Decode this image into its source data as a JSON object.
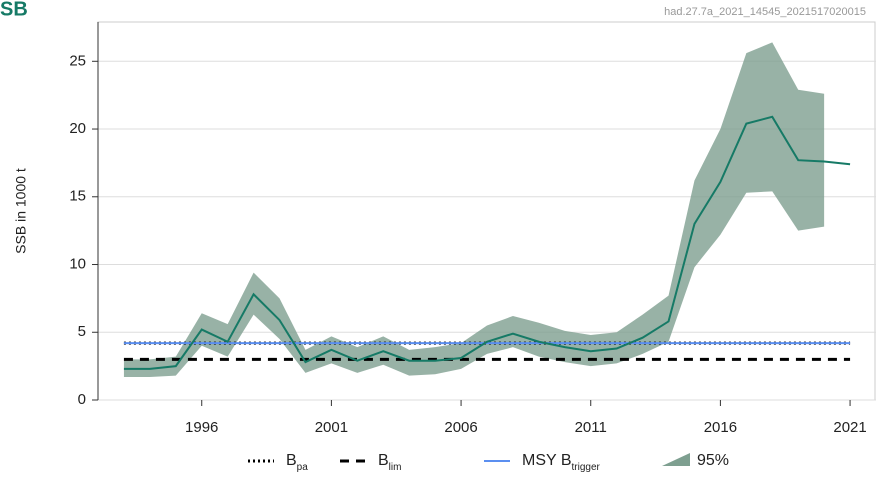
{
  "chart_data": {
    "type": "line",
    "title": "SB",
    "subtitle": "had.27.7a_2021_14545_2021517020015",
    "y_label": "SSB in 1000 t",
    "x": [
      1993,
      1994,
      1995,
      1996,
      1997,
      1998,
      1999,
      2000,
      2001,
      2002,
      2003,
      2004,
      2005,
      2006,
      2007,
      2008,
      2009,
      2010,
      2011,
      2012,
      2013,
      2014,
      2015,
      2016,
      2017,
      2018,
      2019,
      2020,
      2021
    ],
    "series": [
      {
        "color": "#167a66",
        "values": [
          2.3,
          2.3,
          2.5,
          5.2,
          4.3,
          7.8,
          5.9,
          2.8,
          3.7,
          2.9,
          3.6,
          2.9,
          2.9,
          3.1,
          4.3,
          4.9,
          4.3,
          3.9,
          3.6,
          3.8,
          4.6,
          5.8,
          13.0,
          16.1,
          20.4,
          20.9,
          17.7,
          17.6,
          17.4
        ]
      }
    ],
    "band": {
      "label": "95%",
      "color": "#7e9f90",
      "low": [
        1.7,
        1.7,
        1.8,
        4.0,
        3.2,
        6.3,
        4.5,
        2.0,
        2.7,
        2.0,
        2.6,
        1.8,
        1.9,
        2.3,
        3.4,
        3.9,
        3.2,
        2.8,
        2.5,
        2.7,
        3.4,
        4.3,
        9.8,
        12.2,
        15.3,
        15.4,
        12.5,
        12.8,
        null
      ],
      "high": [
        3.0,
        3.0,
        3.2,
        6.4,
        5.6,
        9.4,
        7.5,
        3.7,
        4.7,
        3.9,
        4.7,
        3.7,
        3.9,
        4.2,
        5.5,
        6.2,
        5.7,
        5.1,
        4.8,
        5.0,
        6.3,
        7.7,
        16.2,
        20.0,
        25.6,
        26.4,
        22.9,
        22.6,
        null
      ]
    },
    "reference_lines": [
      {
        "label": "B",
        "label_sub": "pa",
        "value": 4.2,
        "style": "dotted",
        "color": "#000000"
      },
      {
        "label": "B",
        "label_sub": "lim",
        "value": 3.0,
        "style": "dashed",
        "color": "#000000"
      },
      {
        "label": "MSY B",
        "label_sub": "trigger",
        "value": 4.2,
        "style": "solid",
        "color": "#5b8ff0"
      }
    ],
    "xlim": [
      1992,
      2022
    ],
    "xticks": [
      1996,
      2001,
      2006,
      2011,
      2016,
      2021
    ],
    "ylim": [
      0,
      27.9
    ],
    "yticks": [
      0,
      5,
      10,
      15,
      20,
      25
    ],
    "grid": true
  }
}
